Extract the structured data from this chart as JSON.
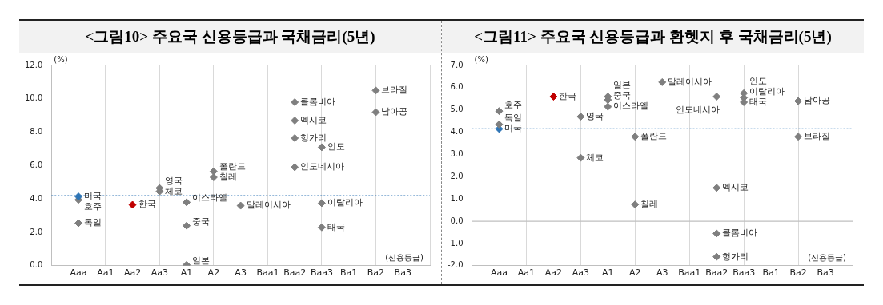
{
  "chart_data": [
    {
      "type": "scatter",
      "title": "<그림10> 주요국 신용등급과 국채금리(5년)",
      "ylabel": "(%)",
      "annotations": [
        "(신용등급)"
      ],
      "marker": "diamond",
      "grid": "x",
      "legend": false,
      "categories": [
        "Aaa",
        "Aa1",
        "Aa2",
        "Aa3",
        "A1",
        "A2",
        "A3",
        "Baa1",
        "Baa2",
        "Baa3",
        "Ba1",
        "Ba2",
        "Ba3"
      ],
      "ylim": [
        0,
        12
      ],
      "yticks": [
        {
          "value": 0,
          "label": "0.0"
        },
        {
          "value": 2,
          "label": "2.0"
        },
        {
          "value": 4,
          "label": "4.0"
        },
        {
          "value": 6,
          "label": "6.0"
        },
        {
          "value": 8,
          "label": "8.0"
        },
        {
          "value": 10,
          "label": "10.0"
        },
        {
          "value": 12,
          "label": "12.0"
        }
      ],
      "ref_lines": [
        {
          "axis": "y",
          "value": 4.2,
          "color": "#2e75b6",
          "line_style": "dotted"
        }
      ],
      "series": [
        {
          "name": "미국",
          "color": "#2e75b6",
          "x": [
            "Aaa"
          ],
          "values": [
            4.15
          ]
        },
        {
          "name": "호주",
          "color": "#7f7f7f",
          "x": [
            "Aaa"
          ],
          "values": [
            3.95
          ]
        },
        {
          "name": "독일",
          "color": "#7f7f7f",
          "x": [
            "Aaa"
          ],
          "values": [
            2.55
          ]
        },
        {
          "name": "한국",
          "color": "#c00000",
          "x": [
            "Aa2"
          ],
          "values": [
            3.65
          ]
        },
        {
          "name": "영국",
          "color": "#7f7f7f",
          "x": [
            "Aa3"
          ],
          "values": [
            4.65
          ]
        },
        {
          "name": "체코",
          "color": "#7f7f7f",
          "x": [
            "Aa3"
          ],
          "values": [
            4.45
          ]
        },
        {
          "name": "이스라엘",
          "color": "#7f7f7f",
          "x": [
            "A1"
          ],
          "values": [
            3.8
          ]
        },
        {
          "name": "중국",
          "color": "#7f7f7f",
          "x": [
            "A1"
          ],
          "values": [
            2.4
          ]
        },
        {
          "name": "일본",
          "color": "#7f7f7f",
          "x": [
            "A1"
          ],
          "values": [
            0.05
          ]
        },
        {
          "name": "폴란드",
          "color": "#7f7f7f",
          "x": [
            "A2"
          ],
          "values": [
            5.65
          ]
        },
        {
          "name": "칠레",
          "color": "#7f7f7f",
          "x": [
            "A2"
          ],
          "values": [
            5.3
          ]
        },
        {
          "name": "말레이시아",
          "color": "#7f7f7f",
          "x": [
            "A3"
          ],
          "values": [
            3.6
          ]
        },
        {
          "name": "콜롬비아",
          "color": "#7f7f7f",
          "x": [
            "Baa2"
          ],
          "values": [
            9.8
          ]
        },
        {
          "name": "멕시코",
          "color": "#7f7f7f",
          "x": [
            "Baa2"
          ],
          "values": [
            8.7
          ]
        },
        {
          "name": "헝가리",
          "color": "#7f7f7f",
          "x": [
            "Baa2"
          ],
          "values": [
            7.65
          ]
        },
        {
          "name": "인도네시아",
          "color": "#7f7f7f",
          "x": [
            "Baa2"
          ],
          "values": [
            5.9
          ]
        },
        {
          "name": "인도",
          "color": "#7f7f7f",
          "x": [
            "Baa3"
          ],
          "values": [
            7.1
          ]
        },
        {
          "name": "이탈리아",
          "color": "#7f7f7f",
          "x": [
            "Baa3"
          ],
          "values": [
            3.75
          ]
        },
        {
          "name": "태국",
          "color": "#7f7f7f",
          "x": [
            "Baa3"
          ],
          "values": [
            2.3
          ]
        },
        {
          "name": "브라질",
          "color": "#7f7f7f",
          "x": [
            "Ba2"
          ],
          "values": [
            10.5
          ]
        },
        {
          "name": "남아공",
          "color": "#7f7f7f",
          "x": [
            "Ba2"
          ],
          "values": [
            9.2
          ]
        }
      ]
    },
    {
      "type": "scatter",
      "title": "<그림11> 주요국 신용등급과 환헷지 후 국채금리(5년)",
      "ylabel": "(%)",
      "annotations": [
        "(신용등급)"
      ],
      "marker": "diamond",
      "grid": "x",
      "legend": false,
      "categories": [
        "Aaa",
        "Aa1",
        "Aa2",
        "Aa3",
        "A1",
        "A2",
        "A3",
        "Baa1",
        "Baa2",
        "Baa3",
        "Ba1",
        "Ba2",
        "Ba3"
      ],
      "ylim": [
        -2,
        7
      ],
      "yticks": [
        {
          "value": -2,
          "label": "-2.0"
        },
        {
          "value": -1,
          "label": "-1.0"
        },
        {
          "value": 0,
          "label": "0.0"
        },
        {
          "value": 1,
          "label": "1.0"
        },
        {
          "value": 2,
          "label": "2.0"
        },
        {
          "value": 3,
          "label": "3.0"
        },
        {
          "value": 4,
          "label": "4.0"
        },
        {
          "value": 5,
          "label": "5.0"
        },
        {
          "value": 6,
          "label": "6.0"
        },
        {
          "value": 7,
          "label": "7.0"
        }
      ],
      "ref_lines": [
        {
          "axis": "y",
          "value": 4.15,
          "color": "#2e75b6",
          "line_style": "dotted"
        },
        {
          "axis": "y",
          "value": 0,
          "color": "#bfbfbf",
          "line_style": "solid"
        }
      ],
      "series": [
        {
          "name": "호주",
          "color": "#7f7f7f",
          "x": [
            "Aaa"
          ],
          "values": [
            4.95
          ]
        },
        {
          "name": "독일",
          "color": "#7f7f7f",
          "x": [
            "Aaa"
          ],
          "values": [
            4.35
          ]
        },
        {
          "name": "미국",
          "color": "#2e75b6",
          "x": [
            "Aaa"
          ],
          "values": [
            4.15
          ]
        },
        {
          "name": "한국",
          "color": "#c00000",
          "x": [
            "Aa2"
          ],
          "values": [
            5.6
          ]
        },
        {
          "name": "영국",
          "color": "#7f7f7f",
          "x": [
            "Aa3"
          ],
          "values": [
            4.7
          ]
        },
        {
          "name": "체코",
          "color": "#7f7f7f",
          "x": [
            "Aa3"
          ],
          "values": [
            2.85
          ]
        },
        {
          "name": "일본",
          "color": "#7f7f7f",
          "x": [
            "A1"
          ],
          "values": [
            5.6
          ]
        },
        {
          "name": "중국",
          "color": "#7f7f7f",
          "x": [
            "A1"
          ],
          "values": [
            5.45
          ]
        },
        {
          "name": "이스라엘",
          "color": "#7f7f7f",
          "x": [
            "A1"
          ],
          "values": [
            5.15
          ]
        },
        {
          "name": "폴란드",
          "color": "#7f7f7f",
          "x": [
            "A2"
          ],
          "values": [
            3.8
          ]
        },
        {
          "name": "칠레",
          "color": "#7f7f7f",
          "x": [
            "A2"
          ],
          "values": [
            0.75
          ]
        },
        {
          "name": "말레이시아",
          "color": "#7f7f7f",
          "x": [
            "A3"
          ],
          "values": [
            6.25
          ]
        },
        {
          "name": "인도네시아",
          "color": "#7f7f7f",
          "x": [
            "Baa2"
          ],
          "values": [
            5.6
          ]
        },
        {
          "name": "멕시코",
          "color": "#7f7f7f",
          "x": [
            "Baa2"
          ],
          "values": [
            1.5
          ]
        },
        {
          "name": "콜롬비아",
          "color": "#7f7f7f",
          "x": [
            "Baa2"
          ],
          "values": [
            -0.55
          ]
        },
        {
          "name": "헝가리",
          "color": "#7f7f7f",
          "x": [
            "Baa2"
          ],
          "values": [
            -1.6
          ]
        },
        {
          "name": "인도",
          "color": "#7f7f7f",
          "x": [
            "Baa3"
          ],
          "values": [
            5.75
          ]
        },
        {
          "name": "이탈리아",
          "color": "#7f7f7f",
          "x": [
            "Baa3"
          ],
          "values": [
            5.55
          ]
        },
        {
          "name": "태국",
          "color": "#7f7f7f",
          "x": [
            "Baa3"
          ],
          "values": [
            5.35
          ]
        },
        {
          "name": "남아공",
          "color": "#7f7f7f",
          "x": [
            "Ba2"
          ],
          "values": [
            5.4
          ]
        },
        {
          "name": "브라질",
          "color": "#7f7f7f",
          "x": [
            "Ba2"
          ],
          "values": [
            3.8
          ]
        }
      ]
    }
  ]
}
